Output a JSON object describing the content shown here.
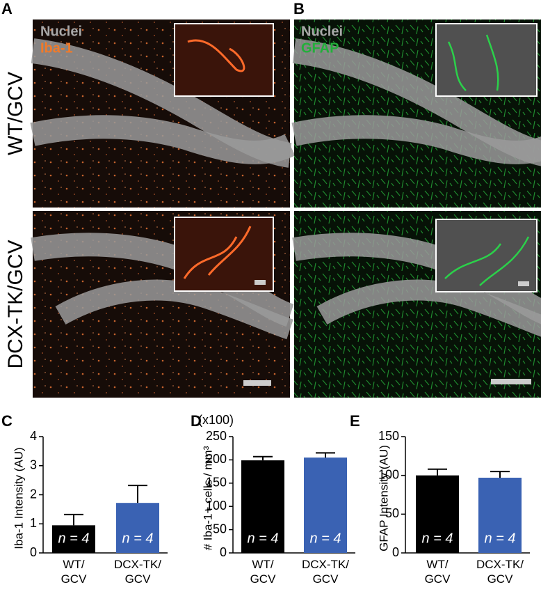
{
  "panel_labels": [
    "A",
    "B",
    "C",
    "D",
    "E"
  ],
  "micrographs": {
    "rows": [
      "WT/GCV",
      "DCX-TK/GCV"
    ],
    "left_stains": [
      "Nuclei",
      "Iba-1"
    ],
    "right_stains": [
      "Nuclei",
      "GFAP"
    ]
  },
  "chart_data": [
    {
      "type": "bar",
      "ylabel": "Iba-1 Intensity (AU)",
      "categories": [
        "WT/\nGCV",
        "DCX-TK/\nGCV"
      ],
      "values": [
        0.95,
        1.72
      ],
      "errors": [
        0.37,
        0.6
      ],
      "colors": [
        "#000000",
        "#3a62b3"
      ],
      "bar_labels": [
        "n = 4",
        "n = 4"
      ],
      "ylim": [
        0,
        4
      ],
      "yticks": [
        0,
        1,
        2,
        3,
        4
      ]
    },
    {
      "type": "bar",
      "annotation": "(x100)",
      "ylabel": "# Iba-1+ cells / mm³",
      "categories": [
        "WT/\nGCV",
        "DCX-TK/\nGCV"
      ],
      "values": [
        199,
        205
      ],
      "errors": [
        8,
        10
      ],
      "colors": [
        "#000000",
        "#3a62b3"
      ],
      "bar_labels": [
        "n = 4",
        "n = 4"
      ],
      "ylim": [
        0,
        250
      ],
      "yticks": [
        0,
        50,
        100,
        150,
        200,
        250
      ]
    },
    {
      "type": "bar",
      "ylabel": "GFAP Intensity (AU)",
      "categories": [
        "WT/\nGCV",
        "DCX-TK/\nGCV"
      ],
      "values": [
        100,
        97
      ],
      "errors": [
        8,
        8
      ],
      "colors": [
        "#000000",
        "#3a62b3"
      ],
      "bar_labels": [
        "n = 4",
        "n = 4"
      ],
      "ylim": [
        0,
        150
      ],
      "yticks": [
        0,
        50,
        100,
        150
      ]
    }
  ]
}
